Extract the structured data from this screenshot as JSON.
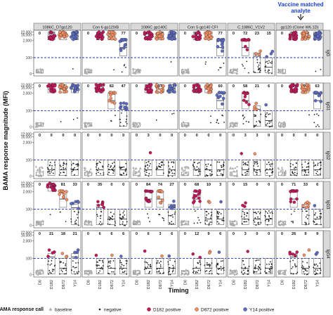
{
  "chart_data": {
    "type": "scatter",
    "title": "",
    "annotation": "Vaccine matched analyte",
    "xlabel": "Timing",
    "ylabel": "BAMA response magnitude (MFI)",
    "x_categories": [
      "D0",
      "D182",
      "D672",
      "Y14"
    ],
    "y_ticks": [
      "0",
      "100",
      "2,000",
      "16,000",
      "22,000"
    ],
    "y_scale": "transformed (MFI, compressed above 2,000)",
    "threshold_line": 100,
    "columns": [
      "1086C_D7gp120",
      "Con 6 gp120/B",
      "1086C gp140C",
      "Con S gp140 CFI",
      "C.1086C_V1V2",
      "gp120 (Clone W6.1D)"
    ],
    "rows": [
      "IgG",
      "IgG1",
      "IgG2",
      "IgG3",
      "IgG4"
    ],
    "response_rates": [
      [
        [
          0,
          100,
          100,
          94
        ],
        [
          0,
          100,
          94,
          77
        ],
        [
          0,
          100,
          100,
          96
        ],
        [
          0,
          100,
          87,
          77
        ],
        [
          0,
          72,
          23,
          15
        ],
        [
          0,
          100,
          100,
          88
        ]
      ],
      [
        [
          0,
          100,
          97,
          88
        ],
        [
          0,
          100,
          82,
          47
        ],
        [
          0,
          100,
          97,
          91
        ],
        [
          0,
          100,
          88,
          60
        ],
        [
          0,
          58,
          21,
          6
        ],
        [
          0,
          100,
          97,
          63
        ]
      ],
      [
        [
          0,
          0,
          0,
          0
        ],
        [
          0,
          0,
          0,
          0
        ],
        [
          0,
          3,
          0,
          0
        ],
        [
          0,
          0,
          0,
          0
        ],
        [
          0,
          3,
          3,
          0
        ],
        [
          0,
          0,
          0,
          0
        ]
      ],
      [
        [
          0,
          97,
          81,
          33
        ],
        [
          0,
          35,
          0,
          0
        ],
        [
          0,
          84,
          74,
          27
        ],
        [
          0,
          68,
          10,
          3
        ],
        [
          0,
          15,
          0,
          0
        ],
        [
          0,
          71,
          33,
          6
        ]
      ],
      [
        [
          0,
          21,
          18,
          21
        ],
        [
          0,
          6,
          6,
          6
        ],
        [
          0,
          6,
          3,
          6
        ],
        [
          0,
          12,
          9,
          6
        ],
        [
          0,
          3,
          0,
          0
        ],
        [
          0,
          26,
          9,
          9
        ]
      ]
    ],
    "legend_title": "BAMA response call",
    "legend": [
      {
        "label": "baseline",
        "marker": "triangle",
        "color": "#aaaaaa"
      },
      {
        "label": "negative",
        "marker": "dot",
        "color": "#222222"
      },
      {
        "label": "D182 positive",
        "marker": "circle",
        "color": "#c2185b"
      },
      {
        "label": "D672 positive",
        "marker": "circle",
        "color": "#f28e63"
      },
      {
        "label": "Y14 positive",
        "marker": "circle",
        "color": "#5c6bc0"
      }
    ],
    "legend_position": "bottom",
    "grid": false
  }
}
